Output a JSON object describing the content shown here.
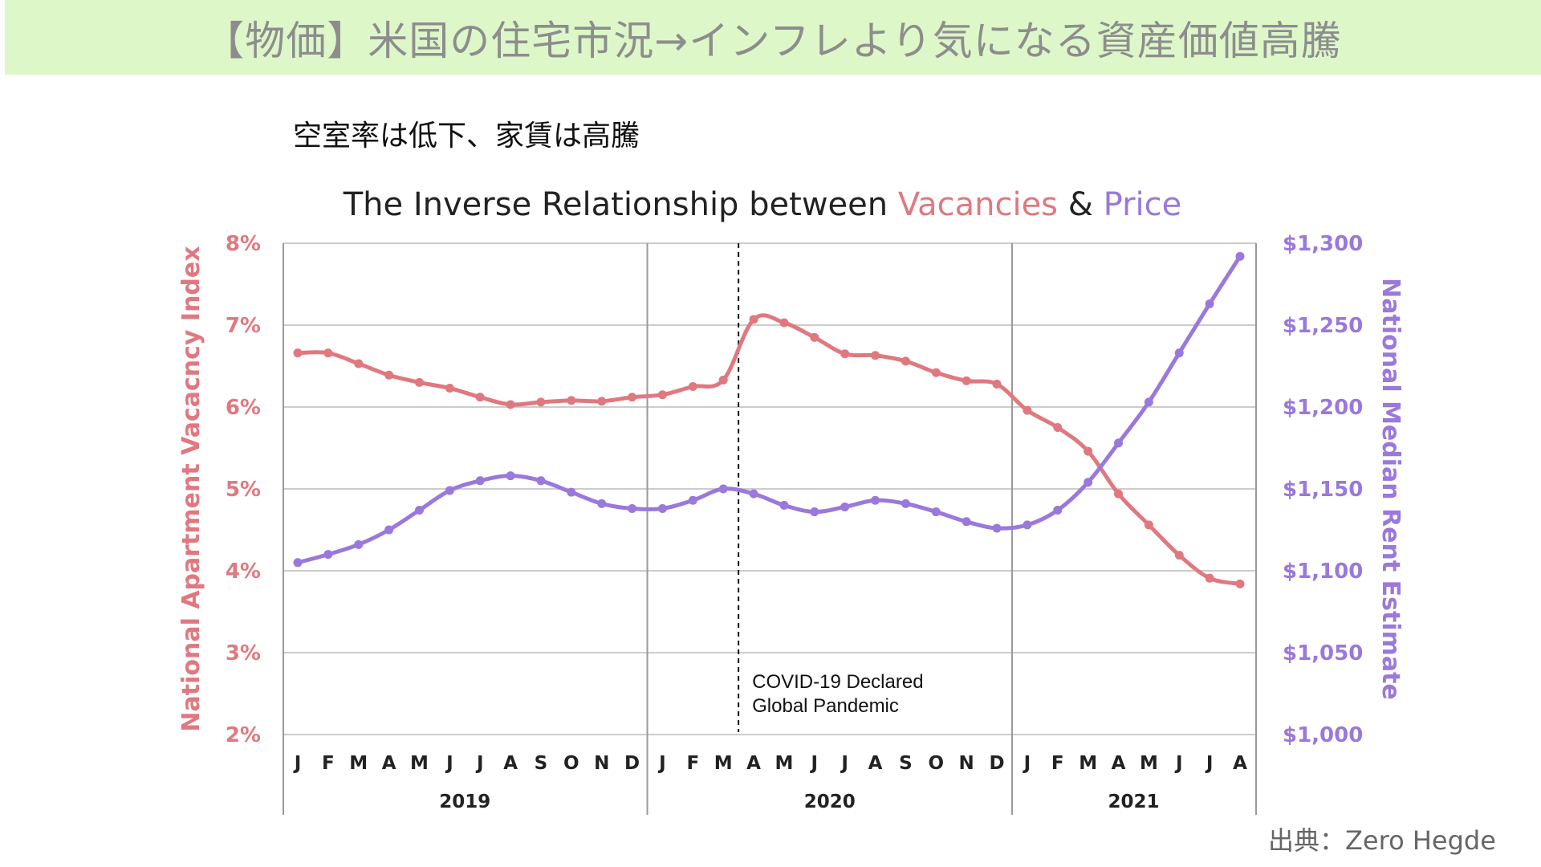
{
  "header": {
    "banner_title": "【物価】米国の住宅市況→インフレより気になる資産価値高騰",
    "subtitle": "空室率は低下、家賃は高騰",
    "source": "出典：Zero Hegde"
  },
  "colors": {
    "banner_bg": "#ddf7c9",
    "vacancy": "#e07880",
    "price": "#9a78dc",
    "grid": "#cccccc",
    "text": "#222222"
  },
  "chart_data": {
    "type": "line",
    "title_parts": [
      {
        "text": "The Inverse Relationship between ",
        "role": "plain"
      },
      {
        "text": "Vacancies",
        "role": "vacancy"
      },
      {
        "text": " & ",
        "role": "plain"
      },
      {
        "text": "Price",
        "role": "price"
      }
    ],
    "x": [
      "J",
      "F",
      "M",
      "A",
      "M",
      "J",
      "J",
      "A",
      "S",
      "O",
      "N",
      "D",
      "J",
      "F",
      "M",
      "A",
      "M",
      "J",
      "J",
      "A",
      "S",
      "O",
      "N",
      "D",
      "J",
      "F",
      "M",
      "A",
      "M",
      "J",
      "J",
      "A"
    ],
    "years": [
      {
        "label": "2019",
        "start_index": 0,
        "end_index": 11
      },
      {
        "label": "2020",
        "start_index": 12,
        "end_index": 23
      },
      {
        "label": "2021",
        "start_index": 24,
        "end_index": 31
      }
    ],
    "left_axis": {
      "label": "National Apartment Vacacncy Index",
      "ylim": [
        2,
        8
      ],
      "ticks": [
        2,
        3,
        4,
        5,
        6,
        7,
        8
      ],
      "tick_labels": [
        "2%",
        "3%",
        "4%",
        "5%",
        "6%",
        "7%",
        "8%"
      ]
    },
    "right_axis": {
      "label": "National Median Rent Estimate",
      "ylim": [
        1000,
        1300
      ],
      "ticks": [
        1000,
        1050,
        1100,
        1150,
        1200,
        1250,
        1300
      ],
      "tick_labels": [
        "$1,000",
        "$1,050",
        "$1,100",
        "$1,150",
        "$1,200",
        "$1,250",
        "$1,300"
      ]
    },
    "series": [
      {
        "name": "Vacancies",
        "axis": "left",
        "values": [
          6.66,
          6.66,
          6.53,
          6.39,
          6.3,
          6.23,
          6.12,
          6.03,
          6.06,
          6.08,
          6.07,
          6.12,
          6.15,
          6.25,
          6.33,
          7.07,
          7.03,
          6.85,
          6.65,
          6.63,
          6.56,
          6.42,
          6.32,
          6.28,
          5.96,
          5.75,
          5.46,
          4.94,
          4.56,
          4.19,
          3.91,
          3.84
        ]
      },
      {
        "name": "Price",
        "axis": "right",
        "values": [
          1105,
          1110,
          1116,
          1125,
          1137,
          1149,
          1155,
          1158,
          1155,
          1148,
          1141,
          1138,
          1138,
          1143,
          1150,
          1147,
          1140,
          1136,
          1139,
          1143,
          1141,
          1136,
          1130,
          1126,
          1128,
          1137,
          1154,
          1178,
          1203,
          1233,
          1263,
          1292
        ]
      }
    ],
    "annotation": {
      "lines": [
        "COVID-19 Declared",
        "Global Pandemic"
      ],
      "at_index": 14.5
    },
    "grid": true
  }
}
